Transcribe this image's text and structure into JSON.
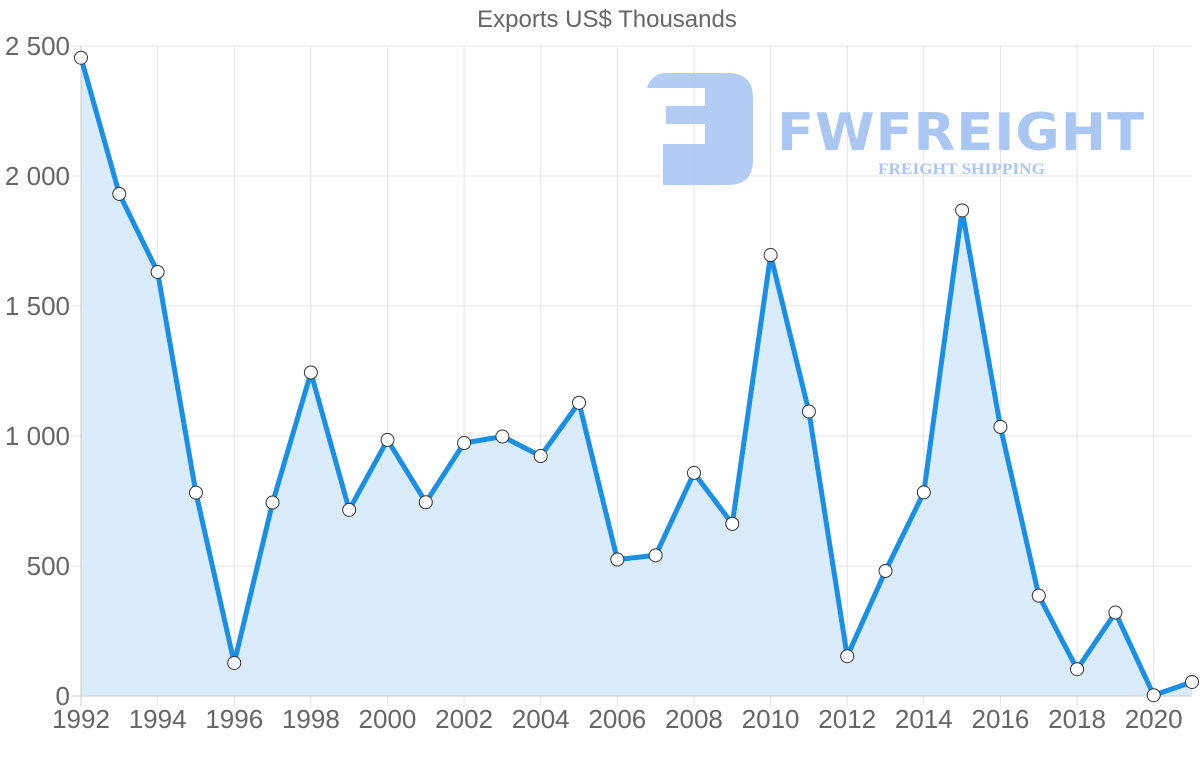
{
  "chart_data": {
    "type": "area",
    "title": "Exports US$ Thousands",
    "xlabel": "",
    "ylabel": "",
    "x": [
      1992,
      1993,
      1994,
      1995,
      1996,
      1997,
      1998,
      1999,
      2000,
      2001,
      2002,
      2003,
      2004,
      2005,
      2006,
      2007,
      2008,
      2009,
      2010,
      2011,
      2012,
      2013,
      2014,
      2015,
      2016,
      2017,
      2018,
      2019,
      2020,
      2021
    ],
    "series": [
      {
        "name": "Exports",
        "values": [
          2455,
          1931,
          1631,
          782,
          127,
          744,
          1244,
          716,
          985,
          745,
          973,
          998,
          923,
          1128,
          525,
          541,
          858,
          662,
          1696,
          1094,
          153,
          481,
          783,
          1868,
          1035,
          386,
          103,
          321,
          3,
          54
        ]
      }
    ],
    "ylim": [
      0,
      2500
    ],
    "xlim": [
      1992,
      2021
    ],
    "yticks": [
      0,
      500,
      1000,
      1500,
      2000,
      2500
    ],
    "ytick_labels": [
      "0",
      "500",
      "1 000",
      "1 500",
      "2 000",
      "2 500"
    ],
    "xticks": [
      1992,
      1994,
      1996,
      1998,
      2000,
      2002,
      2004,
      2006,
      2008,
      2010,
      2012,
      2014,
      2016,
      2018,
      2020
    ],
    "xtick_labels": [
      "1992",
      "1994",
      "1996",
      "1998",
      "2000",
      "2002",
      "2004",
      "2006",
      "2008",
      "2010",
      "2012",
      "2014",
      "2016",
      "2018",
      "2020"
    ],
    "grid": true,
    "legend": null,
    "markers": true,
    "filled": true
  },
  "style": {
    "line_color": "#1a8fe8",
    "fill_color": "#d8ebfc",
    "point_fill": "#ffffff",
    "point_stroke": "#333333",
    "watermark_color": "#aac6f2"
  },
  "watermark": {
    "brand": "FWFREIGHT",
    "tagline": "FREIGHT SHIPPING"
  }
}
